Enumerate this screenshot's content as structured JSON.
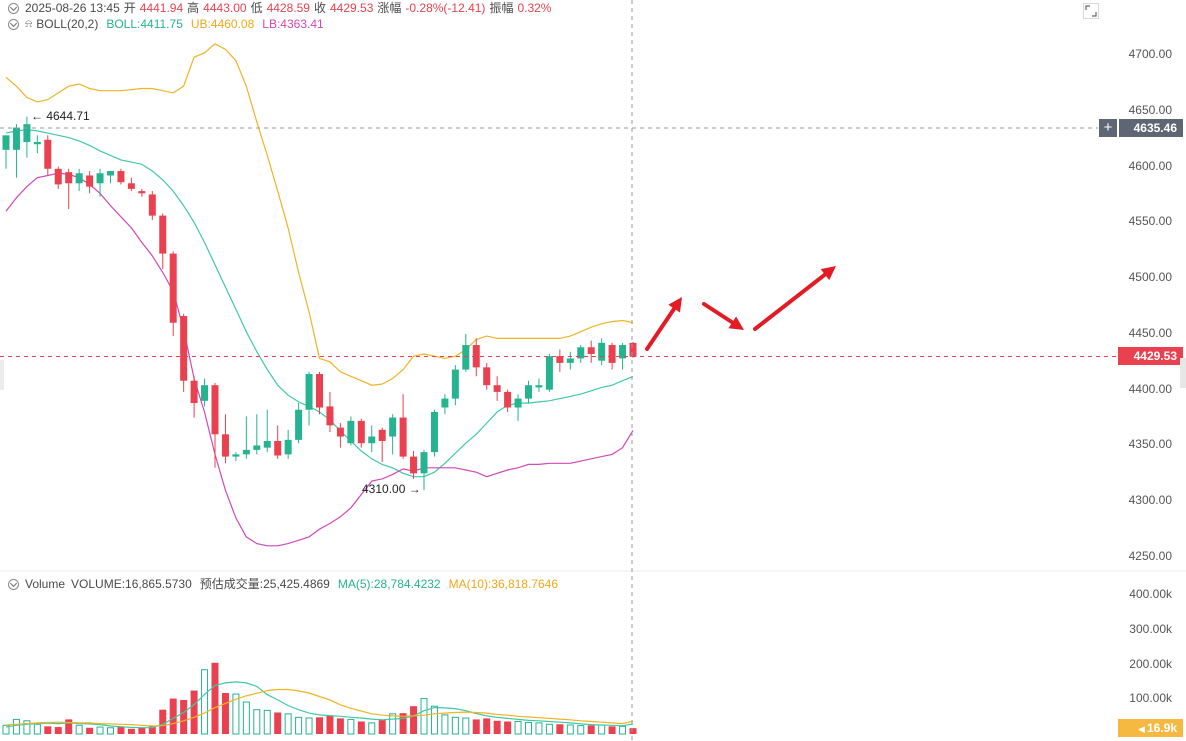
{
  "header": {
    "datetime": "2025-08-26 13:45",
    "open_label": "开",
    "open": "4441.94",
    "high_label": "高",
    "high": "4443.00",
    "low_label": "低",
    "low": "4428.59",
    "close_label": "收",
    "close": "4429.53",
    "change_label": "涨幅",
    "change": "-0.28%(-12.41)",
    "amplitude_label": "振幅",
    "amplitude": "0.32%"
  },
  "boll": {
    "name": "BOLL(20,2)",
    "mid_label": "BOLL:",
    "mid": "4411.75",
    "ub_label": "UB:",
    "ub": "4460.08",
    "lb_label": "LB:",
    "lb": "4363.41"
  },
  "volume_header": {
    "name": "Volume",
    "volume": "VOLUME:16,865.5730",
    "est": "预估成交量:25,425.4869",
    "ma5": "MA(5):28,784.4232",
    "ma10": "MA(10):36,818.7646"
  },
  "price_axis": [
    "4700.00",
    "4650.00",
    "4600.00",
    "4550.00",
    "4500.00",
    "4450.00",
    "4400.00",
    "4350.00",
    "4300.00",
    "4250.00"
  ],
  "volume_axis": [
    "400.00k",
    "300.00k",
    "200.00k",
    "100.00k"
  ],
  "crosshair_price": "4635.46",
  "last_price": "4429.53",
  "last_volume": "16.9k",
  "annotations": {
    "high_mark": "← 4644.71",
    "low_mark": "4310.00 →"
  },
  "colors": {
    "up": "#26b38f",
    "down": "#e9414f",
    "ub": "#f0b323",
    "mid": "#3fc9a7",
    "lb": "#d347b9",
    "arrow": "#e21b24"
  },
  "chart_data": {
    "type": "candlestick",
    "price_range": [
      4210,
      4750
    ],
    "volume_range": [
      0,
      400000
    ],
    "candles": [
      {
        "o": 4615,
        "h": 4628,
        "l": 4598,
        "c": 4628
      },
      {
        "o": 4615,
        "h": 4638,
        "l": 4590,
        "c": 4635
      },
      {
        "o": 4622,
        "h": 4644.71,
        "l": 4608,
        "c": 4638
      },
      {
        "o": 4620,
        "h": 4628,
        "l": 4612,
        "c": 4622
      },
      {
        "o": 4624,
        "h": 4628,
        "l": 4592,
        "c": 4598
      },
      {
        "o": 4598,
        "h": 4600,
        "l": 4580,
        "c": 4584
      },
      {
        "o": 4595,
        "h": 4598,
        "l": 4562,
        "c": 4585
      },
      {
        "o": 4585,
        "h": 4598,
        "l": 4578,
        "c": 4594
      },
      {
        "o": 4592,
        "h": 4596,
        "l": 4576,
        "c": 4582
      },
      {
        "o": 4585,
        "h": 4598,
        "l": 4573,
        "c": 4594
      },
      {
        "o": 4592,
        "h": 4596,
        "l": 4585,
        "c": 4596
      },
      {
        "o": 4596,
        "h": 4598,
        "l": 4584,
        "c": 4586
      },
      {
        "o": 4585,
        "h": 4590,
        "l": 4578,
        "c": 4580
      },
      {
        "o": 4578,
        "h": 4580,
        "l": 4573,
        "c": 4576
      },
      {
        "o": 4575,
        "h": 4578,
        "l": 4552,
        "c": 4556
      },
      {
        "o": 4556,
        "h": 4558,
        "l": 4508,
        "c": 4522
      },
      {
        "o": 4522,
        "h": 4524,
        "l": 4448,
        "c": 4460
      },
      {
        "o": 4466,
        "h": 4468,
        "l": 4398,
        "c": 4408
      },
      {
        "o": 4408,
        "h": 4412,
        "l": 4375,
        "c": 4388
      },
      {
        "o": 4390,
        "h": 4410,
        "l": 4385,
        "c": 4404
      },
      {
        "o": 4404,
        "h": 4406,
        "l": 4330,
        "c": 4360
      },
      {
        "o": 4360,
        "h": 4378,
        "l": 4334,
        "c": 4340
      },
      {
        "o": 4340,
        "h": 4344,
        "l": 4336,
        "c": 4342
      },
      {
        "o": 4342,
        "h": 4376,
        "l": 4338,
        "c": 4346
      },
      {
        "o": 4346,
        "h": 4378,
        "l": 4342,
        "c": 4350
      },
      {
        "o": 4348,
        "h": 4382,
        "l": 4344,
        "c": 4354
      },
      {
        "o": 4354,
        "h": 4368,
        "l": 4338,
        "c": 4341
      },
      {
        "o": 4342,
        "h": 4364,
        "l": 4338,
        "c": 4355
      },
      {
        "o": 4355,
        "h": 4388,
        "l": 4352,
        "c": 4382
      },
      {
        "o": 4382,
        "h": 4416,
        "l": 4368,
        "c": 4414
      },
      {
        "o": 4414,
        "h": 4416,
        "l": 4378,
        "c": 4384
      },
      {
        "o": 4385,
        "h": 4398,
        "l": 4362,
        "c": 4368
      },
      {
        "o": 4366,
        "h": 4370,
        "l": 4348,
        "c": 4358
      },
      {
        "o": 4352,
        "h": 4376,
        "l": 4350,
        "c": 4372
      },
      {
        "o": 4372,
        "h": 4374,
        "l": 4348,
        "c": 4352
      },
      {
        "o": 4352,
        "h": 4368,
        "l": 4344,
        "c": 4358
      },
      {
        "o": 4364,
        "h": 4366,
        "l": 4335,
        "c": 4354
      },
      {
        "o": 4358,
        "h": 4378,
        "l": 4342,
        "c": 4375
      },
      {
        "o": 4375,
        "h": 4396,
        "l": 4338,
        "c": 4340
      },
      {
        "o": 4340,
        "h": 4345,
        "l": 4320,
        "c": 4325
      },
      {
        "o": 4325,
        "h": 4346,
        "l": 4310,
        "c": 4344
      },
      {
        "o": 4344,
        "h": 4382,
        "l": 4340,
        "c": 4380
      },
      {
        "o": 4384,
        "h": 4396,
        "l": 4378,
        "c": 4392
      },
      {
        "o": 4392,
        "h": 4422,
        "l": 4386,
        "c": 4418
      },
      {
        "o": 4418,
        "h": 4450,
        "l": 4416,
        "c": 4440
      },
      {
        "o": 4440,
        "h": 4446,
        "l": 4412,
        "c": 4420
      },
      {
        "o": 4420,
        "h": 4424,
        "l": 4400,
        "c": 4404
      },
      {
        "o": 4404,
        "h": 4412,
        "l": 4390,
        "c": 4398
      },
      {
        "o": 4398,
        "h": 4400,
        "l": 4380,
        "c": 4384
      },
      {
        "o": 4384,
        "h": 4396,
        "l": 4372,
        "c": 4392
      },
      {
        "o": 4392,
        "h": 4408,
        "l": 4388,
        "c": 4404
      },
      {
        "o": 4402,
        "h": 4410,
        "l": 4398,
        "c": 4404
      },
      {
        "o": 4400,
        "h": 4432,
        "l": 4398,
        "c": 4430
      },
      {
        "o": 4430,
        "h": 4436,
        "l": 4416,
        "c": 4424
      },
      {
        "o": 4424,
        "h": 4434,
        "l": 4418,
        "c": 4428
      },
      {
        "o": 4428,
        "h": 4440,
        "l": 4424,
        "c": 4438
      },
      {
        "o": 4438,
        "h": 4444,
        "l": 4424,
        "c": 4432
      },
      {
        "o": 4426,
        "h": 4446,
        "l": 4422,
        "c": 4442
      },
      {
        "o": 4440,
        "h": 4442,
        "l": 4418,
        "c": 4424
      },
      {
        "o": 4428,
        "h": 4442,
        "l": 4418,
        "c": 4440
      },
      {
        "o": 4441.94,
        "h": 4443.0,
        "l": 4428.59,
        "c": 4429.53
      }
    ],
    "upper_band": [
      4680,
      4672,
      4662,
      4658,
      4660,
      4666,
      4672,
      4674,
      4670,
      4668,
      4668,
      4668,
      4669,
      4670,
      4670,
      4668,
      4666,
      4672,
      4698,
      4702,
      4710,
      4705,
      4695,
      4672,
      4640,
      4610,
      4578,
      4545,
      4505,
      4470,
      4428,
      4425,
      4416,
      4412,
      4408,
      4404,
      4405,
      4410,
      4418,
      4430,
      4432,
      4430,
      4428,
      4430,
      4436,
      4445,
      4448,
      4446,
      4446,
      4446,
      4446,
      4446,
      4446,
      4446,
      4448,
      4452,
      4456,
      4459,
      4461,
      4462,
      4460
    ],
    "middle_band": [
      4630,
      4632,
      4633,
      4632,
      4630,
      4628,
      4626,
      4623,
      4619,
      4614,
      4610,
      4606,
      4604,
      4602,
      4596,
      4588,
      4578,
      4565,
      4550,
      4532,
      4512,
      4492,
      4472,
      4452,
      4434,
      4418,
      4404,
      4395,
      4389,
      4385,
      4380,
      4373,
      4363,
      4354,
      4345,
      4338,
      4333,
      4330,
      4325,
      4322,
      4322,
      4326,
      4334,
      4343,
      4352,
      4360,
      4370,
      4380,
      4386,
      4388,
      4388,
      4389,
      4390,
      4392,
      4394,
      4396,
      4399,
      4402,
      4404,
      4408,
      4411.75
    ],
    "lower_band": [
      4560,
      4572,
      4582,
      4590,
      4592,
      4594,
      4593,
      4590,
      4584,
      4576,
      4565,
      4555,
      4545,
      4532,
      4520,
      4505,
      4488,
      4454,
      4410,
      4380,
      4342,
      4310,
      4285,
      4268,
      4262,
      4260,
      4260,
      4262,
      4265,
      4268,
      4275,
      4280,
      4286,
      4294,
      4306,
      4318,
      4320,
      4324,
      4329,
      4327,
      4330,
      4330,
      4330,
      4330,
      4328,
      4326,
      4322,
      4325,
      4328,
      4330,
      4333,
      4333,
      4334,
      4334,
      4334,
      4336,
      4338,
      4340,
      4342,
      4348,
      4363.41
    ],
    "volume": [
      25000,
      42000,
      38000,
      28000,
      22000,
      20000,
      42000,
      25000,
      18000,
      20000,
      18000,
      20000,
      15000,
      18000,
      22000,
      70000,
      102000,
      98000,
      125000,
      185000,
      205000,
      118000,
      115000,
      92000,
      70000,
      68000,
      62000,
      58000,
      48000,
      46000,
      48000,
      52000,
      45000,
      42000,
      36000,
      32000,
      40000,
      58000,
      60000,
      80000,
      102000,
      80000,
      55000,
      48000,
      46000,
      42000,
      45000,
      38000,
      36000,
      36000,
      33000,
      32000,
      28000,
      28000,
      26000,
      24000,
      25000,
      26000,
      22000,
      22000,
      16865
    ],
    "volume_ma5": [
      20000,
      25000,
      28000,
      30000,
      31000,
      30000,
      32000,
      30000,
      29000,
      27000,
      23000,
      21000,
      19000,
      18000,
      18000,
      28000,
      45000,
      62000,
      85000,
      114000,
      140000,
      147000,
      150000,
      147000,
      137000,
      113000,
      98000,
      82000,
      70000,
      60000,
      55000,
      53000,
      51000,
      48000,
      46000,
      43000,
      41000,
      43000,
      45000,
      52000,
      67000,
      76000,
      75000,
      73000,
      67000,
      59000,
      52000,
      48000,
      45000,
      42000,
      39000,
      38000,
      36000,
      34000,
      32000,
      29000,
      27000,
      26000,
      25000,
      24000,
      28784
    ],
    "volume_ma10": [
      26000,
      28000,
      30000,
      32000,
      33000,
      34000,
      33000,
      32000,
      32000,
      30000,
      29000,
      28000,
      27000,
      25000,
      23000,
      24000,
      30000,
      38000,
      48000,
      60000,
      76000,
      88000,
      100000,
      110000,
      117000,
      125000,
      128000,
      128000,
      124000,
      118000,
      108000,
      98000,
      84000,
      74000,
      66000,
      58000,
      54000,
      52000,
      51000,
      52000,
      54000,
      58000,
      60000,
      62000,
      63000,
      62000,
      60000,
      56000,
      54000,
      51000,
      49000,
      47000,
      45000,
      43000,
      41000,
      38000,
      36000,
      34000,
      32000,
      30000,
      36818
    ]
  }
}
